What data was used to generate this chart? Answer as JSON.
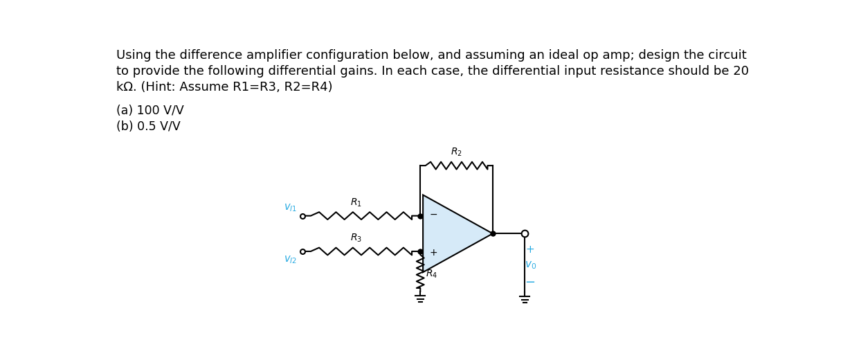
{
  "title_line1": "Using the difference amplifier configuration below, and assuming an ideal op amp; design the circuit",
  "title_line2": "to provide the following differential gains. In each case, the differential input resistance should be 20",
  "title_line3": "kΩ. (Hint: Assume R1=R3, R2=R4)",
  "part_a": "(a) 100 V/V",
  "part_b": "(b) 0.5 V/V",
  "bg_color": "#ffffff",
  "text_color": "#000000",
  "circuit_color": "#000000",
  "opamp_fill": "#d6eaf8",
  "opamp_stroke": "#000000",
  "cyan_color": "#29abe2",
  "title_fontsize": 13.0,
  "parts_fontsize": 12.5,
  "label_fontsize": 10.0,
  "italic_fontsize": 10.5
}
